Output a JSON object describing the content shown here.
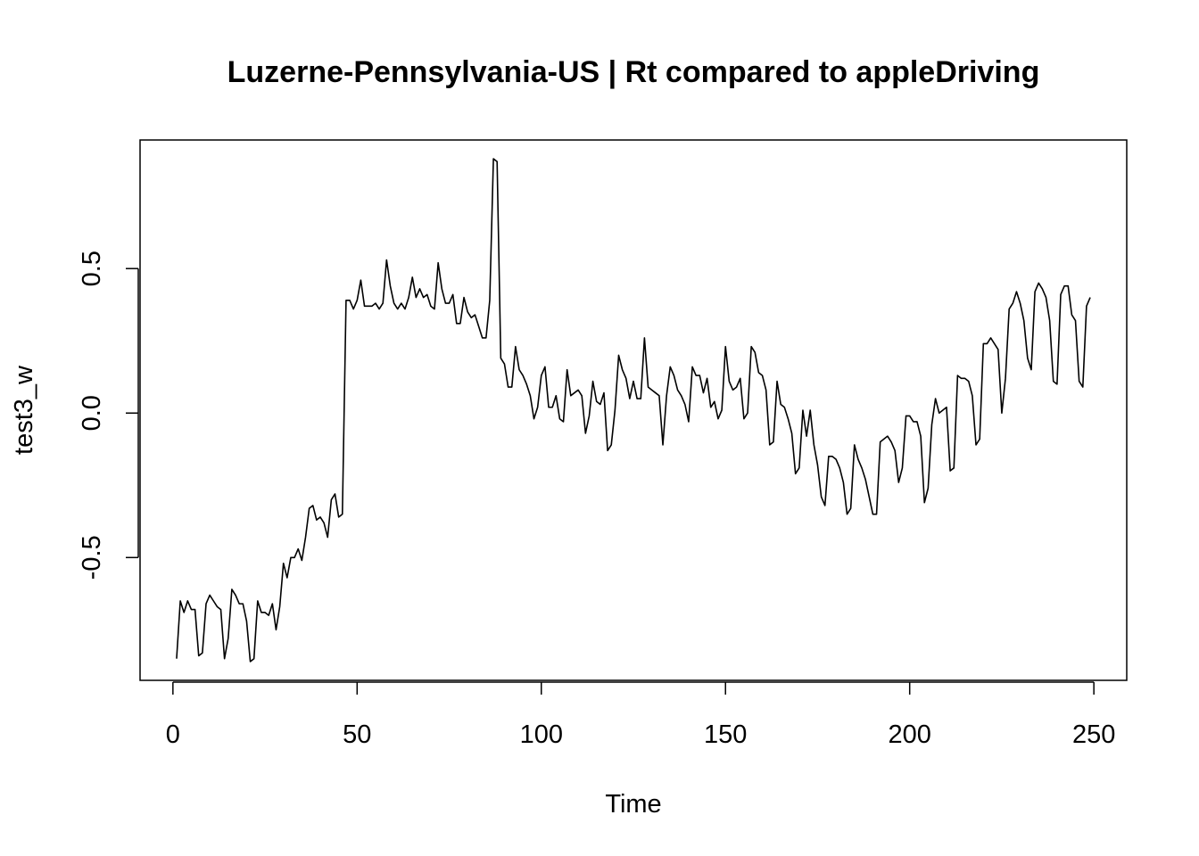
{
  "chart_data": {
    "type": "line",
    "title": "Luzerne-Pennsylvania-US | Rt compared to appleDriving",
    "xlabel": "Time",
    "ylabel": "test3_w",
    "xlim": [
      -8.92,
      258.92
    ],
    "ylim": [
      -0.925,
      0.945
    ],
    "xticks": [
      0,
      50,
      100,
      150,
      200,
      250
    ],
    "yticks": [
      -0.5,
      0.0,
      0.5
    ],
    "xtick_labels": [
      "0",
      "50",
      "100",
      "150",
      "200",
      "250"
    ],
    "ytick_labels": [
      "-0.5",
      "0.0",
      "0.5"
    ],
    "grid": false,
    "legend": "none",
    "line_color": "#000000",
    "series": [
      {
        "x_start": 1,
        "values": [
          -0.85,
          -0.65,
          -0.69,
          -0.65,
          -0.68,
          -0.68,
          -0.84,
          -0.83,
          -0.66,
          -0.63,
          -0.65,
          -0.67,
          -0.68,
          -0.85,
          -0.78,
          -0.61,
          -0.63,
          -0.66,
          -0.66,
          -0.72,
          -0.86,
          -0.85,
          -0.65,
          -0.69,
          -0.69,
          -0.7,
          -0.66,
          -0.75,
          -0.67,
          -0.52,
          -0.57,
          -0.5,
          -0.5,
          -0.47,
          -0.51,
          -0.43,
          -0.33,
          -0.32,
          -0.37,
          -0.36,
          -0.38,
          -0.43,
          -0.3,
          -0.28,
          -0.36,
          -0.35,
          0.39,
          0.39,
          0.36,
          0.39,
          0.46,
          0.37,
          0.37,
          0.37,
          0.38,
          0.36,
          0.38,
          0.53,
          0.44,
          0.38,
          0.36,
          0.38,
          0.36,
          0.4,
          0.47,
          0.4,
          0.43,
          0.4,
          0.41,
          0.37,
          0.36,
          0.52,
          0.43,
          0.38,
          0.38,
          0.41,
          0.31,
          0.31,
          0.4,
          0.35,
          0.33,
          0.34,
          0.3,
          0.26,
          0.26,
          0.39,
          0.88,
          0.87,
          0.19,
          0.17,
          0.09,
          0.09,
          0.23,
          0.15,
          0.13,
          0.1,
          0.06,
          -0.02,
          0.02,
          0.13,
          0.16,
          0.02,
          0.02,
          0.06,
          -0.02,
          -0.03,
          0.15,
          0.06,
          0.07,
          0.08,
          0.06,
          -0.07,
          -0.01,
          0.11,
          0.04,
          0.03,
          0.07,
          -0.13,
          -0.11,
          0.01,
          0.2,
          0.15,
          0.12,
          0.05,
          0.11,
          0.05,
          0.05,
          0.26,
          0.09,
          0.08,
          0.07,
          0.06,
          -0.11,
          0.06,
          0.16,
          0.13,
          0.08,
          0.06,
          0.03,
          -0.03,
          0.16,
          0.13,
          0.13,
          0.07,
          0.12,
          0.02,
          0.04,
          -0.02,
          0.01,
          0.23,
          0.11,
          0.08,
          0.09,
          0.12,
          -0.02,
          0.0,
          0.23,
          0.21,
          0.14,
          0.13,
          0.08,
          -0.11,
          -0.1,
          0.11,
          0.03,
          0.02,
          -0.02,
          -0.07,
          -0.21,
          -0.19,
          0.01,
          -0.08,
          0.01,
          -0.11,
          -0.18,
          -0.29,
          -0.32,
          -0.15,
          -0.15,
          -0.16,
          -0.19,
          -0.24,
          -0.35,
          -0.33,
          -0.11,
          -0.16,
          -0.19,
          -0.23,
          -0.29,
          -0.35,
          -0.35,
          -0.1,
          -0.09,
          -0.08,
          -0.1,
          -0.13,
          -0.24,
          -0.19,
          -0.01,
          -0.01,
          -0.03,
          -0.03,
          -0.08,
          -0.31,
          -0.26,
          -0.04,
          0.05,
          0.0,
          0.01,
          0.02,
          -0.2,
          -0.19,
          0.13,
          0.12,
          0.12,
          0.11,
          0.06,
          -0.11,
          -0.09,
          0.24,
          0.24,
          0.26,
          0.24,
          0.22,
          0.0,
          0.12,
          0.36,
          0.38,
          0.42,
          0.38,
          0.32,
          0.19,
          0.15,
          0.42,
          0.45,
          0.43,
          0.4,
          0.32,
          0.11,
          0.1,
          0.41,
          0.44,
          0.44,
          0.34,
          0.32,
          0.11,
          0.09,
          0.37,
          0.4
        ]
      }
    ]
  }
}
